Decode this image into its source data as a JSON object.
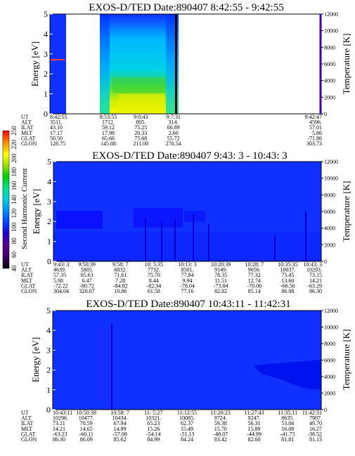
{
  "colorbar": {
    "label": "Second Harmonic Current",
    "ticks": [
      "40",
      "60",
      "80",
      "100",
      "120",
      "140",
      "160",
      "180",
      "200",
      "220",
      "250"
    ],
    "colors": [
      "#000000",
      "#3c0060",
      "#5a0090",
      "#2000c8",
      "#0040ff",
      "#0090ff",
      "#00d0e0",
      "#00e090",
      "#00d000",
      "#a0e000",
      "#ffff00",
      "#ff8000",
      "#ff0000"
    ]
  },
  "chart_data": [
    {
      "type": "heatmap",
      "title": "EXOS-D/TED   Date:890407   8:42:55 - 9:42:55",
      "ylabel": "Energy [eV]",
      "y2label": "Temperature [K]",
      "ylim": [
        0,
        5
      ],
      "y2lim": [
        0,
        12000
      ],
      "yticks": [
        "0",
        "1",
        "2",
        "3",
        "4",
        "5"
      ],
      "y2ticks": [
        "0",
        "2000",
        "4000",
        "6000",
        "8000",
        "10000",
        "12000"
      ],
      "orbit_rows": [
        {
          "label": "UT",
          "values": [
            "8:42:55",
            "8:53:55",
            "9:0:43",
            "9:7:31",
            "9:42:47"
          ]
        },
        {
          "label": "ALT",
          "values": [
            "3511.",
            "1712.",
            "805.",
            "314.",
            "4596."
          ]
        },
        {
          "label": "ILAT",
          "values": [
            "43.10",
            "59.12",
            "75.25",
            "66.89",
            "57.01"
          ]
        },
        {
          "label": "MLT",
          "values": [
            "17.17",
            "17.98",
            "20.33",
            "2.60",
            "5.86"
          ]
        },
        {
          "label": "GLAT",
          "values": [
            "50.50",
            "65.66",
            "75.68",
            "55.72",
            "-71.86"
          ]
        },
        {
          "label": "GLON",
          "values": [
            "128.75",
            "145.88",
            "211.00",
            "270.54",
            "303.73"
          ]
        }
      ],
      "orbit_columns": [
        0,
        0.215,
        0.335,
        0.455,
        1
      ]
    },
    {
      "type": "heatmap",
      "title": "EXOS-D/TED   Date:890407   9:43: 3 - 10:43: 3",
      "ylabel": "Energy [eV]",
      "y2label": "Temperature [K]",
      "ylim": [
        0,
        5
      ],
      "y2lim": [
        0,
        12000
      ],
      "yticks": [
        "0",
        "1",
        "2",
        "3",
        "4",
        "5"
      ],
      "y2ticks": [
        "0",
        "2000",
        "4000",
        "6000",
        "8000",
        "10000",
        "12000"
      ],
      "orbit_rows": [
        {
          "label": "UT",
          "values": [
            "9:43: 3",
            "9:50:39",
            "9:58: 7",
            "10: 5:35",
            "10:13: 3",
            "10:20:39",
            "10:28: 7",
            "10:35:35",
            "10:43: 3"
          ]
        },
        {
          "label": "ALT",
          "values": [
            "4639.",
            "5805.",
            "6832.",
            "7732.",
            "8501.",
            "9149.",
            "9656.",
            "10037.",
            "10293."
          ]
        },
        {
          "label": "ILAT",
          "values": [
            "57.35",
            "65.63",
            "71.61",
            "75.70",
            "77.94",
            "78.35",
            "77.32",
            "75.45",
            "73.15"
          ]
        },
        {
          "label": "MLT",
          "values": [
            "5.88",
            "6.47",
            "7.28",
            "8.44",
            "9.94",
            "11.51",
            "12.74",
            "13.60",
            "14.21"
          ]
        },
        {
          "label": "GLAT",
          "values": [
            "-72.22",
            "-80.72",
            "-84.82",
            "-82.34",
            "-78.04",
            "-73.84",
            "-70.06",
            "-66.56",
            "-63.29"
          ]
        },
        {
          "label": "GLON",
          "values": [
            "304.04",
            "320.07",
            "10.86",
            "61.58",
            "77.16",
            "82.82",
            "85.14",
            "86.08",
            "86.30"
          ]
        }
      ],
      "orbit_columns": [
        0,
        0.125,
        0.25,
        0.375,
        0.5,
        0.625,
        0.75,
        0.875,
        1
      ]
    },
    {
      "type": "heatmap",
      "title": "EXOS-D/TED   Date:890407   10:43:11 - 11:42:31",
      "ylabel": "Energy [eV]",
      "y2label": "Temperature [K]",
      "ylim": [
        0,
        5
      ],
      "y2lim": [
        0,
        12000
      ],
      "yticks": [
        "0",
        "1",
        "2",
        "3",
        "4",
        "5"
      ],
      "y2ticks": [
        "0",
        "2000",
        "4000",
        "6000",
        "8000",
        "10000",
        "12000"
      ],
      "orbit_rows": [
        {
          "label": "UT",
          "values": [
            "10:43:11",
            "10:50:39",
            "10:58: 7",
            "11: 5:27",
            "11:12:55",
            "11:20:23",
            "11:27:43",
            "11:35:11",
            "11:42:31"
          ]
        },
        {
          "label": "ALT",
          "values": [
            "10296.",
            "10477.",
            "10434.",
            "10321.",
            "10085.",
            "9724.",
            "9247.",
            "8635.",
            "7907."
          ]
        },
        {
          "label": "ILAT",
          "values": [
            "73.11",
            "70.59",
            "67.94",
            "65.23",
            "62.37",
            "59.38",
            "56.31",
            "53.04",
            "49.70"
          ]
        },
        {
          "label": "MLT",
          "values": [
            "14.21",
            "14.65",
            "14.99",
            "15.26",
            "15.49",
            "15.70",
            "15.89",
            "16.08",
            "16.27"
          ]
        },
        {
          "label": "GLAT",
          "values": [
            "-63.23",
            "-60.11",
            "-57.08",
            "-54.14",
            "-51.13",
            "-48.07",
            "-44.99",
            "-41.75",
            "-38.52"
          ]
        },
        {
          "label": "GLON",
          "values": [
            "86.30",
            "86.09",
            "85.62",
            "84.99",
            "84.24",
            "83.42",
            "82.60",
            "81.81",
            "81.13"
          ]
        }
      ],
      "orbit_columns": [
        0,
        0.125,
        0.25,
        0.375,
        0.5,
        0.625,
        0.75,
        0.875,
        1
      ]
    }
  ]
}
